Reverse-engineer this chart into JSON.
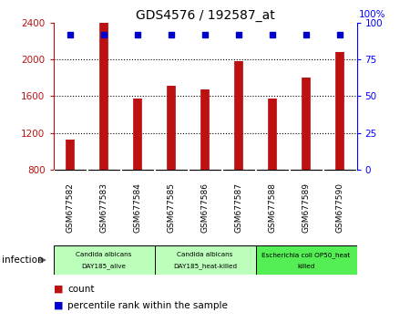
{
  "title": "GDS4576 / 192587_at",
  "samples": [
    "GSM677582",
    "GSM677583",
    "GSM677584",
    "GSM677585",
    "GSM677586",
    "GSM677587",
    "GSM677588",
    "GSM677589",
    "GSM677590"
  ],
  "counts": [
    1130,
    2400,
    1570,
    1710,
    1670,
    1980,
    1570,
    1800,
    2080
  ],
  "percentiles": [
    92,
    92,
    92,
    92,
    92,
    92,
    92,
    92,
    92
  ],
  "ylim_left": [
    800,
    2400
  ],
  "ylim_right": [
    0,
    100
  ],
  "yticks_left": [
    800,
    1200,
    1600,
    2000,
    2400
  ],
  "yticks_right": [
    0,
    25,
    50,
    75,
    100
  ],
  "bar_color": "#bb1111",
  "dot_color": "#0000cc",
  "groups": [
    {
      "label": "Candida albicans\nDAY185_alive",
      "start": 0,
      "end": 3,
      "color": "#bbffbb"
    },
    {
      "label": "Candida albicans\nDAY185_heat-killed",
      "start": 3,
      "end": 6,
      "color": "#bbffbb"
    },
    {
      "label": "Escherichia coli OP50_heat\nkilled",
      "start": 6,
      "end": 9,
      "color": "#55ee55"
    }
  ],
  "group_label": "infection",
  "legend_count_label": "count",
  "legend_percentile_label": "percentile rank within the sample",
  "background_color": "#ffffff",
  "plot_bg_color": "#ffffff",
  "tick_area_bg": "#cccccc"
}
